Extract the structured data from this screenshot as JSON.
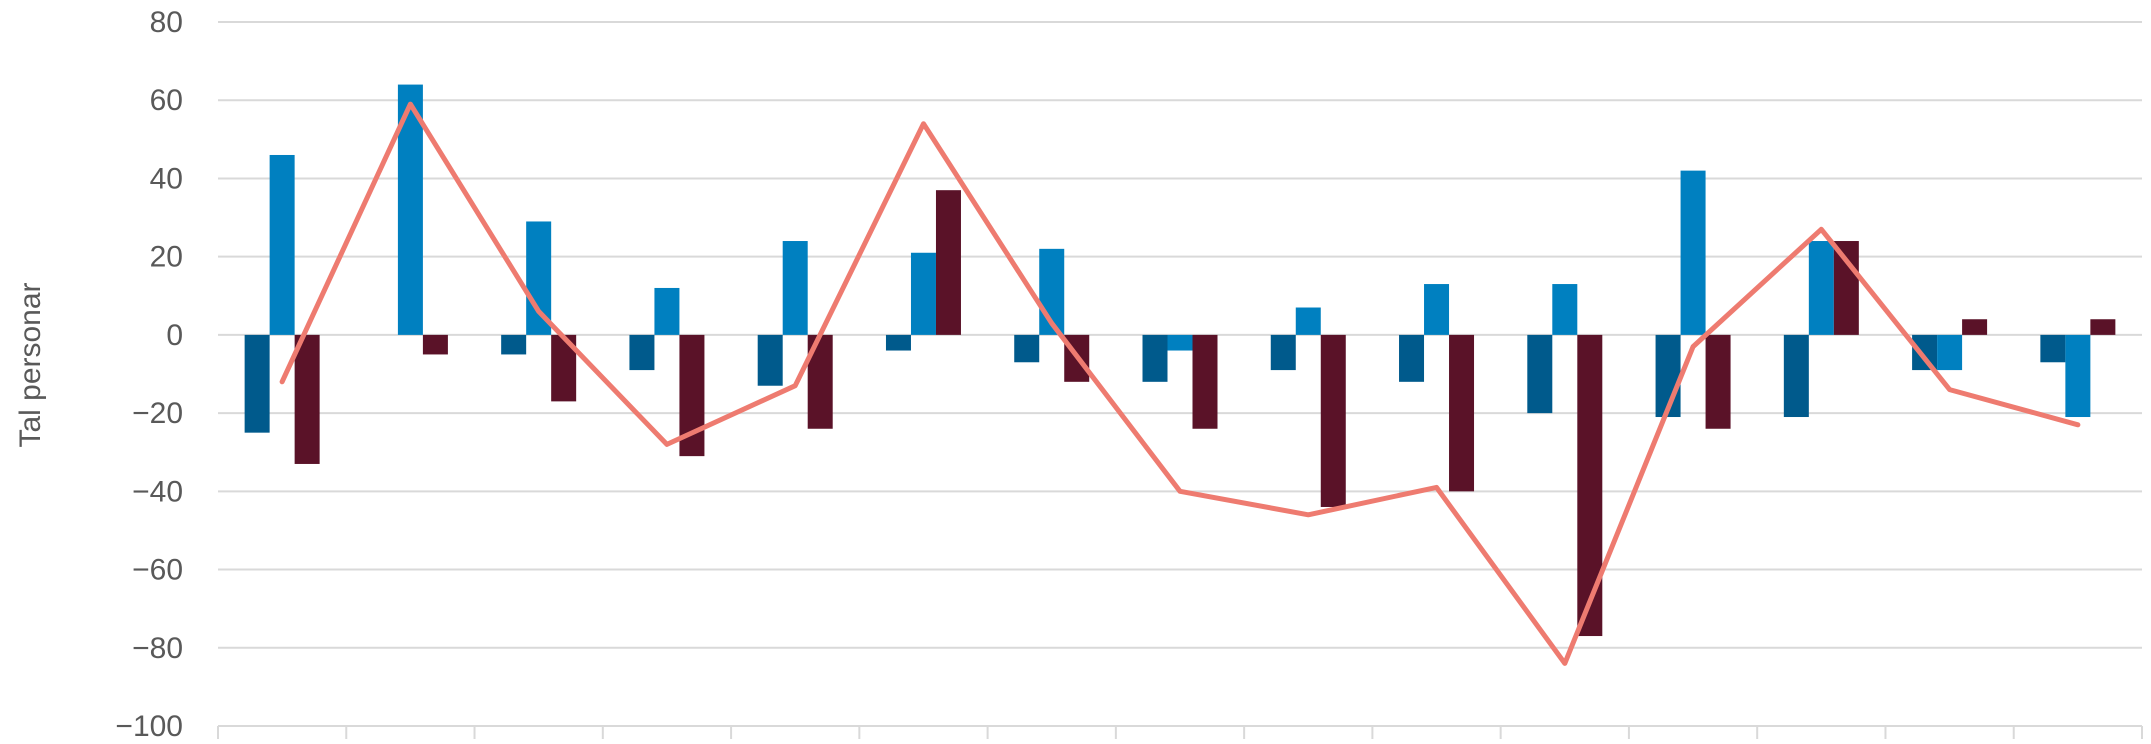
{
  "chart_data": {
    "type": "bar",
    "ylabel": "Tal personar",
    "ylim": [
      -100,
      80
    ],
    "yticks": [
      80,
      60,
      40,
      20,
      0,
      -20,
      -40,
      -60,
      -80,
      -100
    ],
    "ytick_labels": [
      "80",
      "60",
      "40",
      "20",
      "0",
      "−20",
      "−40",
      "−60",
      "−80",
      "−100"
    ],
    "grid": true,
    "category_count": 15,
    "series": [
      {
        "kind": "bar",
        "color": "#005A8C",
        "values": [
          -25,
          0,
          -5,
          -9,
          -13,
          -4,
          -7,
          -12,
          -9,
          -12,
          -20,
          -21,
          -21,
          -9,
          -7
        ]
      },
      {
        "kind": "bar",
        "color": "#0080C0",
        "values": [
          46,
          64,
          29,
          12,
          24,
          21,
          22,
          -4,
          7,
          13,
          13,
          42,
          24,
          -9,
          -21
        ]
      },
      {
        "kind": "bar",
        "color": "#5A1228",
        "values": [
          -33,
          -5,
          -17,
          -31,
          -24,
          37,
          -12,
          -24,
          -44,
          -40,
          -77,
          -24,
          24,
          4,
          4
        ]
      },
      {
        "kind": "line",
        "color": "#EE7B70",
        "values": [
          -12,
          59,
          6,
          -28,
          -13,
          54,
          3,
          -40,
          -46,
          -39,
          -84,
          -3,
          27,
          -14,
          -23
        ]
      }
    ]
  }
}
